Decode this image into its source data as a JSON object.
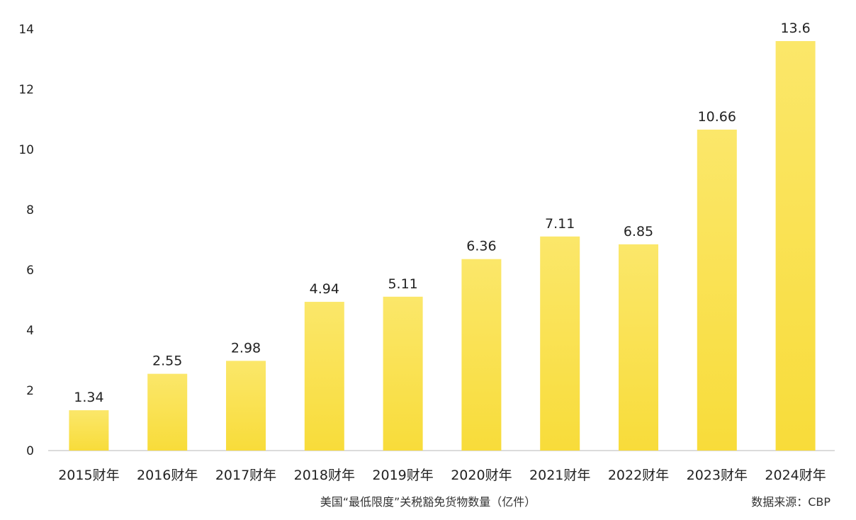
{
  "chart_data": {
    "type": "bar",
    "title": "",
    "xlabel": "美国“最低限度”关税豁免货物数量（亿件）",
    "ylabel": "",
    "source": "数据来源：CBP",
    "ylim": [
      0,
      14
    ],
    "yticks": [
      "0",
      "2",
      "4",
      "6",
      "8",
      "10",
      "12",
      "14"
    ],
    "categories": [
      "2015财年",
      "2016财年",
      "2017财年",
      "2018财年",
      "2019财年",
      "2020财年",
      "2021财年",
      "2022财年",
      "2023财年",
      "2024财年"
    ],
    "values": [
      1.34,
      2.55,
      2.98,
      4.94,
      5.11,
      6.36,
      7.11,
      6.85,
      10.66,
      13.6
    ],
    "value_labels": [
      "1.34",
      "2.55",
      "2.98",
      "4.94",
      "5.11",
      "6.36",
      "7.11",
      "6.85",
      "10.66",
      "13.6"
    ],
    "grid": false,
    "legend": "none",
    "colors": {
      "bar_top": "#FBE76A",
      "bar_bottom": "#F8DC3A",
      "axis": "#cfcfcf",
      "text": "#222222"
    }
  }
}
